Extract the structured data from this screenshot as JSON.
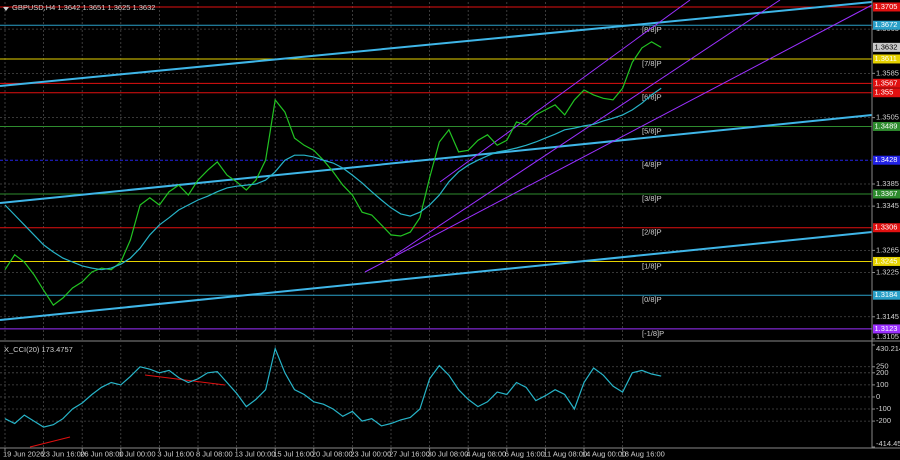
{
  "chart_data": [
    {
      "type": "line",
      "title": "GBPUSD,H4  1.3642 1.3651 1.3625 1.3632",
      "categories": [
        "19 Jun 2026",
        null,
        null,
        null,
        "23 Jun 16:00",
        null,
        null,
        null,
        "26 Jun 08:00",
        null,
        null,
        null,
        "1 Jul 00:00",
        null,
        null,
        null,
        "3 Jul 16:00",
        null,
        null,
        null,
        "8 Jul 08:00",
        null,
        null,
        null,
        "13 Jul 00:00",
        null,
        null,
        null,
        "15 Jul 16:00",
        null,
        null,
        null,
        "20 Jul 08:00",
        null,
        null,
        null,
        "23 Jul 00:00",
        null,
        null,
        null,
        "27 Jul 16:00",
        null,
        null,
        null,
        "30 Jul 08:00",
        null,
        null,
        null,
        "4 Aug 08:00",
        null,
        null,
        null,
        "6 Aug 16:00",
        null,
        null,
        null,
        "11 Aug 08:00",
        null,
        null,
        null,
        "14 Aug 00:00",
        null,
        null,
        null,
        "18 Aug 16:00",
        null,
        null,
        null,
        null
      ],
      "series": [
        {
          "color": "#22c322",
          "values": [
            1.323,
            1.3257,
            1.3244,
            1.3221,
            1.3193,
            1.3166,
            1.3179,
            1.3197,
            1.3208,
            1.3226,
            1.3233,
            1.323,
            1.3244,
            1.3284,
            1.3347,
            1.336,
            1.3347,
            1.3371,
            1.3383,
            1.3365,
            1.3392,
            1.341,
            1.3425,
            1.3401,
            1.3389,
            1.3374,
            1.3392,
            1.3428,
            1.3537,
            1.3515,
            1.3468,
            1.3455,
            1.3446,
            1.3428,
            1.3407,
            1.3383,
            1.3365,
            1.3334,
            1.3329,
            1.3311,
            1.3293,
            1.3291,
            1.3298,
            1.3324,
            1.3396,
            1.3461,
            1.3483,
            1.3443,
            1.3446,
            1.3464,
            1.3474,
            1.3455,
            1.3464,
            1.3497,
            1.3492,
            1.351,
            1.3519,
            1.3528,
            1.351,
            1.3537,
            1.3555,
            1.3546,
            1.354,
            1.3537,
            1.3558,
            1.3605,
            1.3631,
            1.3642,
            1.3632
          ]
        },
        {
          "color": "#27b4c8",
          "values": [
            1.3347,
            1.3329,
            1.3311,
            1.3293,
            1.3275,
            1.3262,
            1.3251,
            1.3244,
            1.3237,
            1.3233,
            1.323,
            1.3233,
            1.324,
            1.3251,
            1.3269,
            1.3293,
            1.3311,
            1.3324,
            1.3338,
            1.3347,
            1.3356,
            1.3363,
            1.3371,
            1.3378,
            1.3381,
            1.3383,
            1.3385,
            1.3392,
            1.3407,
            1.3428,
            1.3437,
            1.3437,
            1.3434,
            1.3428,
            1.3423,
            1.3414,
            1.3401,
            1.3387,
            1.3371,
            1.3356,
            1.3342,
            1.3331,
            1.3327,
            1.3334,
            1.3347,
            1.3365,
            1.3389,
            1.3407,
            1.3419,
            1.3428,
            1.3436,
            1.3443,
            1.3446,
            1.345,
            1.3455,
            1.3461,
            1.3468,
            1.3475,
            1.3483,
            1.3486,
            1.349,
            1.3493,
            1.3499,
            1.3504,
            1.351,
            1.3519,
            1.3531,
            1.3546,
            1.3558
          ]
        }
      ],
      "ylim": [
        1.3103,
        1.3714
      ],
      "yticks": [
        1.3665,
        1.3585,
        1.3505,
        1.3385,
        1.3345,
        1.3265,
        1.3225,
        1.3145,
        1.3105
      ],
      "grid": true,
      "current_price": 1.3632,
      "levels": [
        {
          "value": 1.3705,
          "color": "#e01010"
        },
        {
          "value": 1.3672,
          "tag": "[8/8]P",
          "color": "#2aa0c8"
        },
        {
          "value": 1.3611,
          "tag": "[7/8]P",
          "color": "#e6d200"
        },
        {
          "value": 1.3567,
          "color": "#e01010"
        },
        {
          "value": 1.355,
          "tag": "[6/8]P",
          "color": "#e01010"
        },
        {
          "value": 1.3489,
          "tag": "[5/8]P",
          "color": "#2e8b2e"
        },
        {
          "value": 1.3428,
          "tag": "[4/8]P",
          "color": "#2222e6"
        },
        {
          "value": 1.3367,
          "tag": "[3/8]P",
          "color": "#2e8b2e"
        },
        {
          "value": 1.3306,
          "tag": "[2/8]P",
          "color": "#e01010"
        },
        {
          "value": 1.3245,
          "tag": "[1/8]P",
          "color": "#e6d200"
        },
        {
          "value": 1.3184,
          "tag": "[0/8]P",
          "color": "#2aa0c8"
        },
        {
          "value": 1.3123,
          "tag": "[-1/8]P",
          "color": "#9b30ff"
        }
      ]
    },
    {
      "type": "line",
      "title": "X_CCI(20) 173.4757",
      "color": "#27b4c8",
      "values": [
        -180,
        -220,
        -150,
        -200,
        -250,
        -230,
        -180,
        -100,
        -50,
        20,
        80,
        120,
        100,
        170,
        250,
        230,
        200,
        220,
        160,
        120,
        150,
        200,
        210,
        120,
        30,
        -80,
        -20,
        60,
        400,
        200,
        60,
        20,
        -40,
        -60,
        -100,
        -160,
        -120,
        -200,
        -180,
        -240,
        -220,
        -190,
        -170,
        -100,
        150,
        260,
        180,
        60,
        -20,
        -80,
        -40,
        40,
        20,
        120,
        80,
        -30,
        10,
        60,
        20,
        -100,
        120,
        240,
        180,
        90,
        40,
        200,
        220,
        190,
        173
      ],
      "ylim": [
        -414.451,
        430.2144
      ],
      "yticks": [
        430.2144,
        250,
        200,
        100,
        0,
        -100,
        -200,
        -414.451
      ],
      "grid": true
    }
  ]
}
